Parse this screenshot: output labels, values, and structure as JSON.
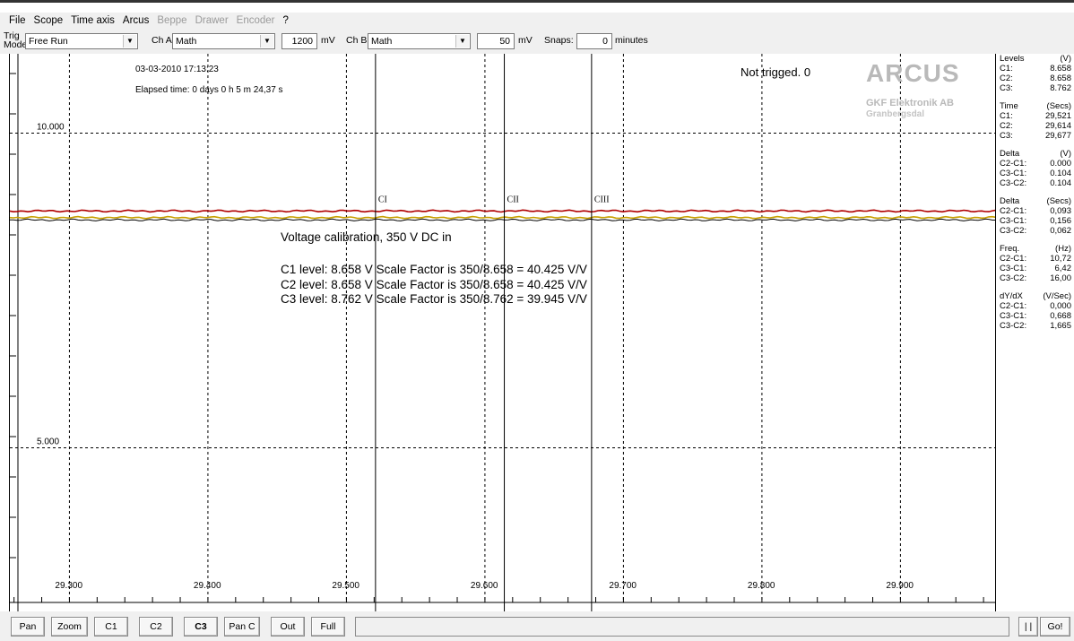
{
  "menu": [
    {
      "label": "File",
      "enabled": true
    },
    {
      "label": "Scope",
      "enabled": true
    },
    {
      "label": "Time axis",
      "enabled": true
    },
    {
      "label": "Arcus",
      "enabled": true
    },
    {
      "label": "Beppe",
      "enabled": false
    },
    {
      "label": "Drawer",
      "enabled": false
    },
    {
      "label": "Encoder",
      "enabled": false
    },
    {
      "label": "?",
      "enabled": true
    }
  ],
  "toolbar": {
    "trig_label_1": "Trig",
    "trig_label_2": "Mode",
    "trig_mode": "Free Run",
    "cha_label": "Ch A",
    "cha_value": "Math",
    "cha_scale": "1200",
    "cha_unit": "mV",
    "chb_label": "Ch B",
    "chb_value": "Math",
    "chb_scale": "50",
    "chb_unit": "mV",
    "snaps_label": "Snaps:",
    "snaps_value": "0",
    "snaps_unit": "minutes"
  },
  "plot": {
    "datetime": "03-03-2010  17:13:23",
    "elapsed": "Elapsed time: 0 days 0 h 5 m 24,37 s",
    "status": "Not trigged. 0",
    "brand": "ARCUS",
    "brand_sub": "GKF Elektronik AB",
    "brand_sub2": "Granbergsdal",
    "annotations": [
      "Voltage calibration, 350 V DC in",
      "C1 level: 8.658 V  Scale Factor is 350/8.658 = 40.425 V/V",
      "C2 level: 8.658 V  Scale Factor is 350/8.658 = 40.425 V/V",
      "C3 level: 8.762 V  Scale Factor is 350/8.762 =  39.945 V/V"
    ],
    "cursor_labels": [
      "CI",
      "CII",
      "CIII"
    ],
    "colors": {
      "trace_red": "#b00000",
      "trace_yellow": "#c8a000",
      "grid": "#000000"
    }
  },
  "chart_data": {
    "type": "line",
    "x_ticks": [
      "29.300",
      "29.400",
      "29.500",
      "29.600",
      "29.700",
      "29.800",
      "29.900"
    ],
    "x_tick_values": [
      29.3,
      29.4,
      29.5,
      29.6,
      29.7,
      29.8,
      29.9
    ],
    "y_ticks": [
      "10.000",
      "5.000"
    ],
    "y_tick_values": [
      10.0,
      5.0
    ],
    "xlim": [
      29.257,
      29.969
    ],
    "ylim": [
      2.4,
      11.26
    ],
    "grid": true,
    "series": [
      {
        "color": "#b00000",
        "level": 8.762
      },
      {
        "color": "#c8a000",
        "level": 8.658
      },
      {
        "color": "#000000",
        "level": 8.62
      }
    ],
    "cursors": [
      {
        "label": "CI",
        "x": 29.521
      },
      {
        "label": "CII",
        "x": 29.614
      },
      {
        "label": "CIII",
        "x": 29.677
      }
    ]
  },
  "panel": {
    "groups": [
      {
        "header": [
          "Levels",
          "(V)"
        ],
        "rows": [
          [
            "C1:",
            "8.658"
          ],
          [
            "C2:",
            "8.658"
          ],
          [
            "C3:",
            "8.762"
          ]
        ]
      },
      {
        "header": [
          "Time",
          "(Secs)"
        ],
        "rows": [
          [
            "C1:",
            "29,521"
          ],
          [
            "C2:",
            "29,614"
          ],
          [
            "C3:",
            "29,677"
          ]
        ]
      },
      {
        "header": [
          "Delta",
          "(V)"
        ],
        "rows": [
          [
            "C2-C1:",
            "0.000"
          ],
          [
            "C3-C1:",
            "0.104"
          ],
          [
            "C3-C2:",
            "0.104"
          ]
        ]
      },
      {
        "header": [
          "Delta",
          "(Secs)"
        ],
        "rows": [
          [
            "C2-C1:",
            "0,093"
          ],
          [
            "C3-C1:",
            "0,156"
          ],
          [
            "C3-C2:",
            "0,062"
          ]
        ]
      },
      {
        "header": [
          "Freq.",
          "(Hz)"
        ],
        "rows": [
          [
            "C2-C1:",
            "10,72"
          ],
          [
            "C3-C1:",
            "6,42"
          ],
          [
            "C3-C2:",
            "16,00"
          ]
        ]
      },
      {
        "header": [
          "dY/dX",
          "(V/Sec)"
        ],
        "rows": [
          [
            "C2-C1:",
            "0,000"
          ],
          [
            "C3-C1:",
            "0,668"
          ],
          [
            "C3-C2:",
            "1,665"
          ]
        ]
      }
    ]
  },
  "bottom": {
    "buttons": [
      "Pan",
      "Zoom",
      "C1",
      "C2",
      "C3",
      "Pan C",
      "Out",
      "Full"
    ],
    "pause_label": "| |",
    "go_label": "Go!"
  }
}
